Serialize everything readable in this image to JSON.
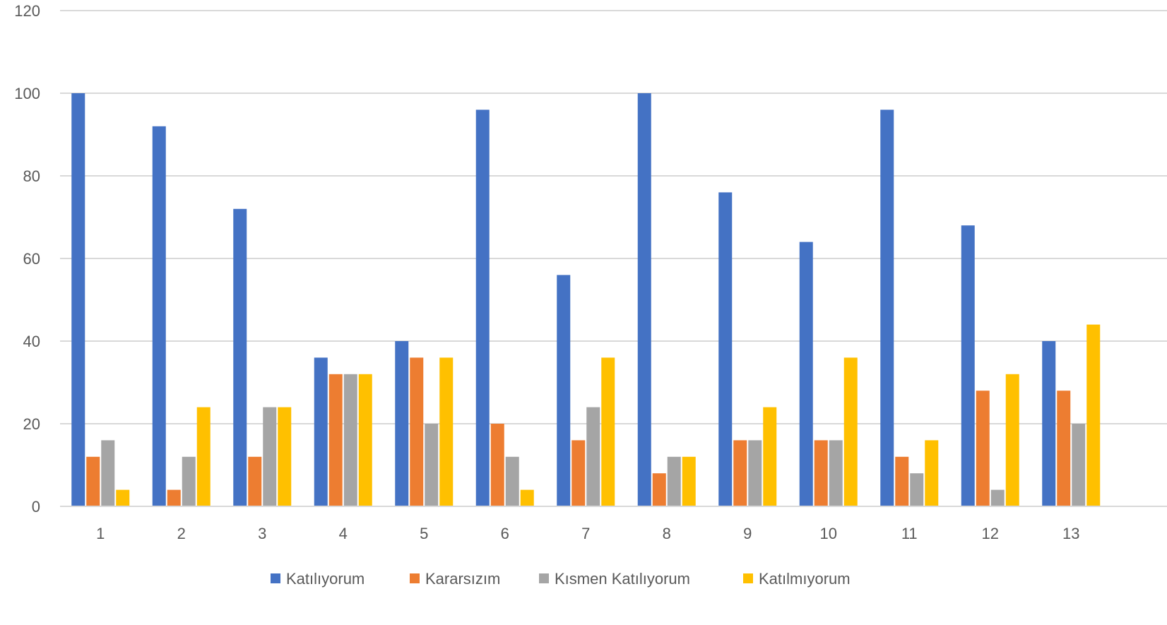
{
  "chart_data": {
    "type": "bar",
    "title": "",
    "xlabel": "",
    "ylabel": "",
    "ylim": [
      0,
      120
    ],
    "yticks": [
      0,
      20,
      40,
      60,
      80,
      100,
      120
    ],
    "grid": true,
    "legend_position": "bottom",
    "categories": [
      "1",
      "2",
      "3",
      "4",
      "5",
      "6",
      "7",
      "8",
      "9",
      "10",
      "11",
      "12",
      "13"
    ],
    "series": [
      {
        "name": "Katılıyorum",
        "color": "#4472C4",
        "values": [
          100,
          92,
          72,
          36,
          40,
          96,
          56,
          100,
          76,
          64,
          96,
          68,
          40
        ]
      },
      {
        "name": "Kararsızım",
        "color": "#ED7D31",
        "values": [
          12,
          4,
          12,
          32,
          36,
          20,
          16,
          8,
          16,
          16,
          12,
          28,
          28
        ]
      },
      {
        "name": "Kısmen Katılıyorum",
        "color": "#A5A5A5",
        "values": [
          16,
          12,
          24,
          32,
          20,
          12,
          24,
          12,
          16,
          16,
          8,
          4,
          20
        ]
      },
      {
        "name": "Katılmıyorum",
        "color": "#FFC000",
        "values": [
          4,
          24,
          24,
          32,
          36,
          4,
          36,
          12,
          24,
          36,
          16,
          32,
          44
        ]
      }
    ]
  }
}
